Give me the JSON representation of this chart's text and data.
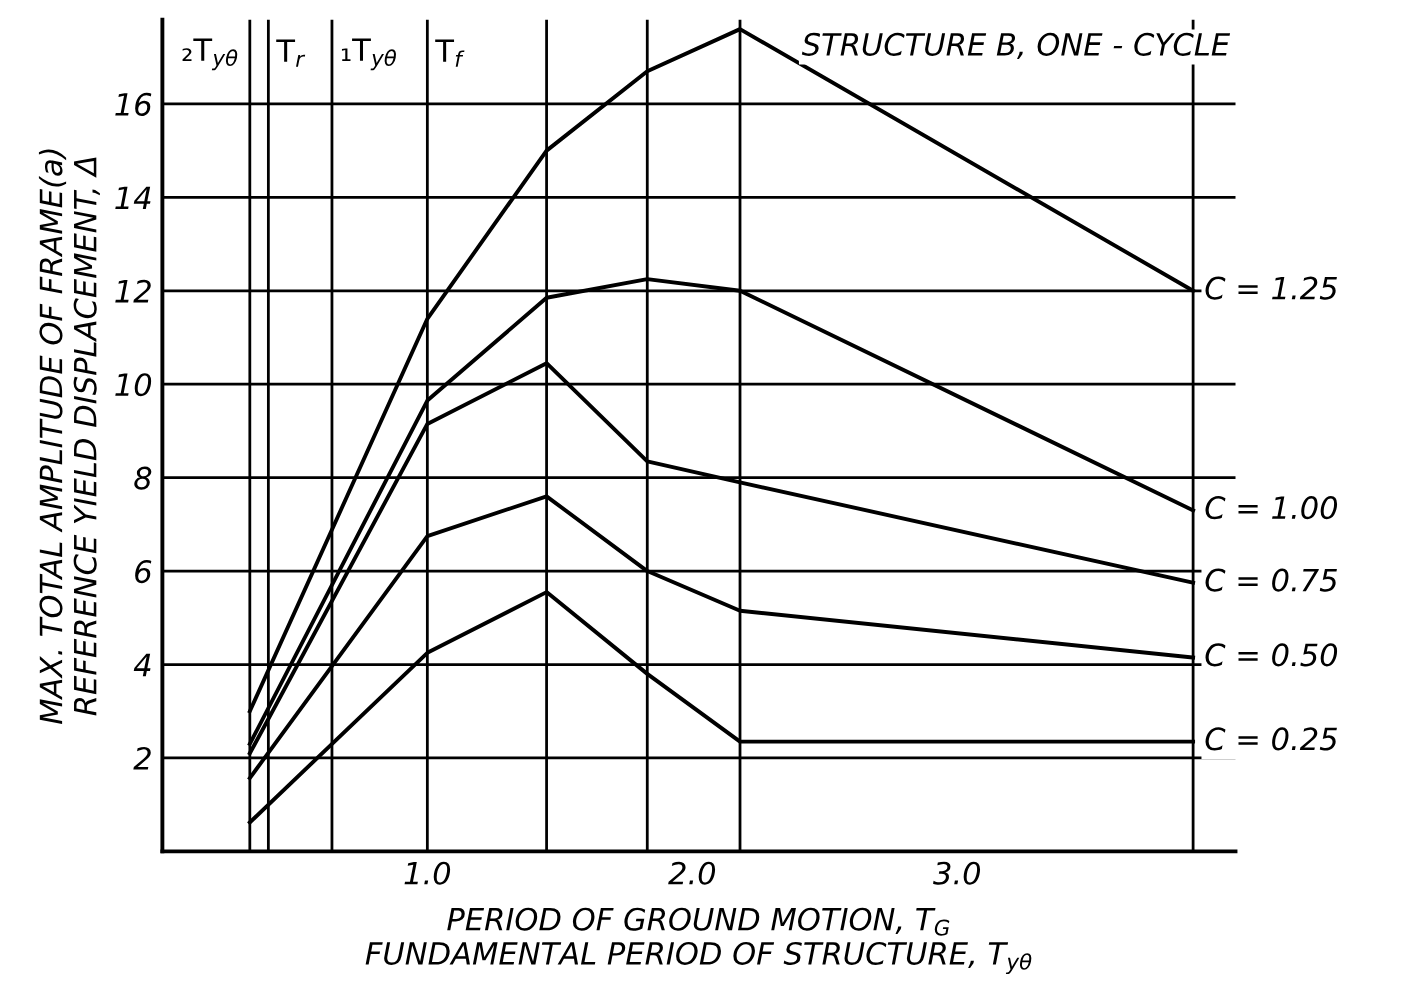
{
  "chart_data": {
    "type": "line",
    "xlabel": "PERIOD OF GROUND MOTION, T$_{G}$\nFUNDAMENTAL PERIOD OF STRUCTURE, T$_{yθ}$",
    "ylabel": "MAX. TOTAL AMPLITUDE OF FRAME(a)\nREFERENCE YIELD DISPLACEMENT, Δ",
    "x": [
      0.33,
      1.0,
      1.45,
      1.83,
      2.18,
      3.89
    ],
    "series": [
      {
        "name": "C = 1.25",
        "color": "#000000",
        "values": [
          3.0,
          11.4,
          15.0,
          16.7,
          17.6,
          12.0
        ]
      },
      {
        "name": "C = 1.00",
        "color": "#000000",
        "values": [
          2.3,
          9.65,
          11.85,
          12.25,
          12.0,
          7.3
        ]
      },
      {
        "name": "C = 0.75",
        "color": "#000000",
        "values": [
          2.1,
          9.15,
          10.45,
          8.35,
          7.9,
          5.75
        ]
      },
      {
        "name": "C = 0.50",
        "color": "#000000",
        "values": [
          1.57,
          6.75,
          7.6,
          6.0,
          5.15,
          4.15
        ]
      },
      {
        "name": "C = 0.25",
        "color": "#000000",
        "values": [
          0.62,
          4.25,
          5.55,
          3.8,
          2.35,
          2.35
        ]
      }
    ],
    "annotations": [
      "STRUCTURE B, ONE - CYCLE"
    ],
    "ref_lines": [
      {
        "axis": "x",
        "value": 0.33,
        "label": "₂T$_{yθ}$"
      },
      {
        "axis": "x",
        "value": 0.4,
        "label": "T$_{r}$"
      },
      {
        "axis": "x",
        "value": 0.64,
        "label": "₁T$_{yθ}$"
      },
      {
        "axis": "x",
        "value": 1.0,
        "label": "T$_{f}$"
      },
      {
        "axis": "x",
        "value": 1.45
      },
      {
        "axis": "x",
        "value": 1.83
      },
      {
        "axis": "x",
        "value": 2.18
      },
      {
        "axis": "x",
        "value": 3.89
      }
    ],
    "xlim": [
      0,
      4.05
    ],
    "ylim": [
      0,
      17.8
    ],
    "xticks": [
      {
        "value": 1,
        "label": "1.0"
      },
      {
        "value": 2,
        "label": "2.0"
      },
      {
        "value": 3,
        "label": "3.0"
      }
    ],
    "yticks": [
      2,
      4,
      6,
      8,
      10,
      12,
      14,
      16
    ],
    "grid": "y",
    "marker": "none",
    "line_style": "solid",
    "legend": false
  }
}
